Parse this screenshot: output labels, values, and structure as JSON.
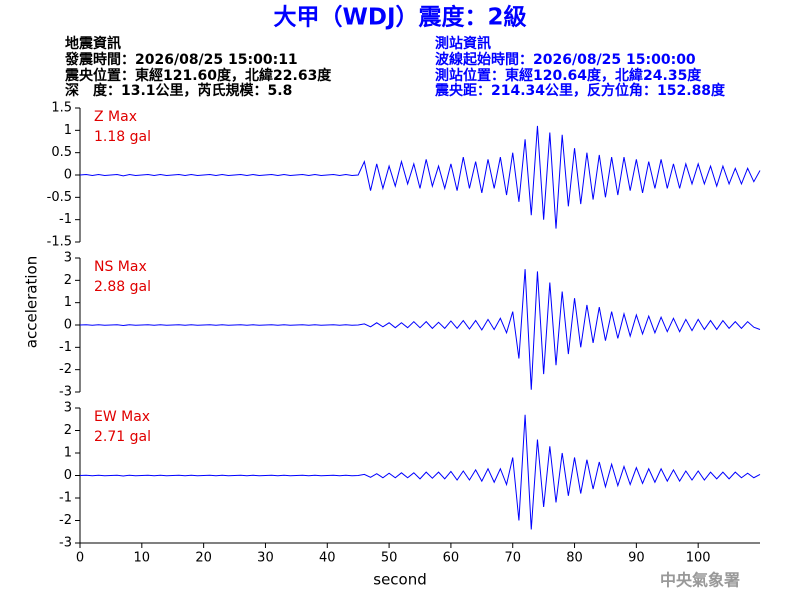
{
  "header": {
    "title": "大甲（WDJ）震度：2級",
    "quake": [
      "地震資訊",
      "發震時間：2026/08/25 15:00:11",
      "震央位置：東經121.60度，北緯22.63度",
      "深　度：13.1公里，芮氏規模：5.8"
    ],
    "station": [
      "測站資訊",
      "波線起始時間：2026/08/25 15:00:00",
      "測站位置：東經120.64度，北緯24.35度",
      "震央距：214.34公里，反方位角：152.88度"
    ]
  },
  "ylabel": "acceleration",
  "footer": "中央氣象署",
  "chart_data": [
    {
      "type": "line",
      "title": "Z Max",
      "annotation": "1.18 gal",
      "color": "#0000ff",
      "xlim": [
        0,
        110
      ],
      "ylim": [
        -1.5,
        1.5
      ],
      "yticks": [
        -1.5,
        -1,
        -0.5,
        0,
        0.5,
        1,
        1.5
      ],
      "x": [
        0,
        1,
        2,
        3,
        4,
        5,
        6,
        7,
        8,
        9,
        10,
        11,
        12,
        13,
        14,
        15,
        16,
        17,
        18,
        19,
        20,
        21,
        22,
        23,
        24,
        25,
        26,
        27,
        28,
        29,
        30,
        31,
        32,
        33,
        34,
        35,
        36,
        37,
        38,
        39,
        40,
        41,
        42,
        43,
        44,
        45,
        46,
        47,
        48,
        49,
        50,
        51,
        52,
        53,
        54,
        55,
        56,
        57,
        58,
        59,
        60,
        61,
        62,
        63,
        64,
        65,
        66,
        67,
        68,
        69,
        70,
        71,
        72,
        73,
        74,
        75,
        76,
        77,
        78,
        79,
        80,
        81,
        82,
        83,
        84,
        85,
        86,
        87,
        88,
        89,
        90,
        91,
        92,
        93,
        94,
        95,
        96,
        97,
        98,
        99,
        100,
        101,
        102,
        103,
        104,
        105,
        106,
        107,
        108,
        109,
        110
      ],
      "values": [
        0,
        0.01,
        -0.01,
        0.01,
        -0.01,
        0,
        0.01,
        -0.02,
        0.01,
        -0.01,
        0,
        0.01,
        -0.01,
        0.01,
        -0.01,
        0,
        0.01,
        -0.01,
        0.01,
        -0.01,
        0,
        0.01,
        -0.01,
        0.01,
        -0.01,
        0,
        0.01,
        -0.01,
        0.01,
        -0.01,
        0,
        0.01,
        -0.01,
        0.01,
        -0.01,
        0,
        0.01,
        -0.01,
        0.01,
        -0.01,
        0,
        0.01,
        -0.01,
        0.01,
        -0.01,
        0,
        0.3,
        -0.35,
        0.25,
        -0.3,
        0.2,
        -0.25,
        0.3,
        -0.2,
        0.25,
        -0.3,
        0.35,
        -0.25,
        0.2,
        -0.3,
        0.25,
        -0.35,
        0.4,
        -0.3,
        0.3,
        -0.4,
        0.35,
        -0.3,
        0.4,
        -0.45,
        0.5,
        -0.6,
        0.8,
        -0.9,
        1.1,
        -1.0,
        0.95,
        -1.2,
        0.9,
        -0.7,
        0.6,
        -0.65,
        0.5,
        -0.55,
        0.45,
        -0.5,
        0.4,
        -0.45,
        0.4,
        -0.35,
        0.35,
        -0.4,
        0.3,
        -0.3,
        0.35,
        -0.3,
        0.25,
        -0.3,
        0.25,
        -0.2,
        0.25,
        -0.2,
        0.2,
        -0.25,
        0.2,
        -0.2,
        0.15,
        -0.2,
        0.15,
        -0.15,
        0.1
      ]
    },
    {
      "type": "line",
      "title": "NS Max",
      "annotation": "2.88 gal",
      "color": "#0000ff",
      "xlim": [
        0,
        110
      ],
      "ylim": [
        -3,
        3
      ],
      "yticks": [
        -3,
        -2,
        -1,
        0,
        1,
        2,
        3
      ],
      "x": [
        0,
        1,
        2,
        3,
        4,
        5,
        6,
        7,
        8,
        9,
        10,
        11,
        12,
        13,
        14,
        15,
        16,
        17,
        18,
        19,
        20,
        21,
        22,
        23,
        24,
        25,
        26,
        27,
        28,
        29,
        30,
        31,
        32,
        33,
        34,
        35,
        36,
        37,
        38,
        39,
        40,
        41,
        42,
        43,
        44,
        45,
        46,
        47,
        48,
        49,
        50,
        51,
        52,
        53,
        54,
        55,
        56,
        57,
        58,
        59,
        60,
        61,
        62,
        63,
        64,
        65,
        66,
        67,
        68,
        69,
        70,
        71,
        72,
        73,
        74,
        75,
        76,
        77,
        78,
        79,
        80,
        81,
        82,
        83,
        84,
        85,
        86,
        87,
        88,
        89,
        90,
        91,
        92,
        93,
        94,
        95,
        96,
        97,
        98,
        99,
        100,
        101,
        102,
        103,
        104,
        105,
        106,
        107,
        108,
        109,
        110
      ],
      "values": [
        0,
        0.01,
        -0.01,
        0.01,
        -0.01,
        0,
        0.01,
        -0.02,
        0.01,
        -0.01,
        0,
        0.01,
        -0.01,
        0.01,
        -0.01,
        0,
        0.01,
        -0.01,
        0.01,
        -0.01,
        0,
        0.01,
        -0.01,
        0.01,
        -0.01,
        0,
        0.01,
        -0.01,
        0.01,
        -0.01,
        0,
        0.01,
        -0.01,
        0.01,
        -0.01,
        0,
        0.01,
        -0.01,
        0.01,
        -0.01,
        0,
        0.01,
        -0.01,
        0.01,
        -0.01,
        0,
        0.05,
        -0.08,
        0.1,
        -0.08,
        0.1,
        -0.12,
        0.1,
        -0.12,
        0.15,
        -0.12,
        0.15,
        -0.15,
        0.12,
        -0.15,
        0.18,
        -0.15,
        0.2,
        -0.18,
        0.2,
        -0.22,
        0.25,
        -0.2,
        0.3,
        -0.35,
        0.6,
        -1.5,
        2.5,
        -2.9,
        2.4,
        -2.2,
        1.9,
        -1.8,
        1.5,
        -1.3,
        1.2,
        -1.0,
        0.9,
        -0.8,
        0.8,
        -0.7,
        0.6,
        -0.6,
        0.5,
        -0.5,
        0.45,
        -0.4,
        0.4,
        -0.35,
        0.35,
        -0.3,
        0.3,
        -0.3,
        0.25,
        -0.25,
        0.25,
        -0.2,
        0.2,
        -0.2,
        0.2,
        -0.15,
        0.15,
        -0.15,
        0.15,
        -0.1,
        -0.2
      ]
    },
    {
      "type": "line",
      "title": "EW Max",
      "annotation": "2.71 gal",
      "color": "#0000ff",
      "xlim": [
        0,
        110
      ],
      "ylim": [
        -3,
        3
      ],
      "yticks": [
        -3,
        -2,
        -1,
        0,
        1,
        2,
        3
      ],
      "xticks": [
        0,
        10,
        20,
        30,
        40,
        50,
        60,
        70,
        80,
        90,
        100
      ],
      "xlabel": "second",
      "x": [
        0,
        1,
        2,
        3,
        4,
        5,
        6,
        7,
        8,
        9,
        10,
        11,
        12,
        13,
        14,
        15,
        16,
        17,
        18,
        19,
        20,
        21,
        22,
        23,
        24,
        25,
        26,
        27,
        28,
        29,
        30,
        31,
        32,
        33,
        34,
        35,
        36,
        37,
        38,
        39,
        40,
        41,
        42,
        43,
        44,
        45,
        46,
        47,
        48,
        49,
        50,
        51,
        52,
        53,
        54,
        55,
        56,
        57,
        58,
        59,
        60,
        61,
        62,
        63,
        64,
        65,
        66,
        67,
        68,
        69,
        70,
        71,
        72,
        73,
        74,
        75,
        76,
        77,
        78,
        79,
        80,
        81,
        82,
        83,
        84,
        85,
        86,
        87,
        88,
        89,
        90,
        91,
        92,
        93,
        94,
        95,
        96,
        97,
        98,
        99,
        100,
        101,
        102,
        103,
        104,
        105,
        106,
        107,
        108,
        109,
        110
      ],
      "values": [
        0,
        0.01,
        -0.01,
        0.01,
        -0.01,
        0,
        0.01,
        -0.02,
        0.01,
        -0.01,
        0,
        0.01,
        -0.01,
        0.01,
        -0.01,
        0,
        0.01,
        -0.01,
        0.01,
        -0.01,
        0,
        0.01,
        -0.01,
        0.01,
        -0.01,
        0,
        0.01,
        -0.01,
        0.01,
        -0.01,
        0,
        0.01,
        -0.01,
        0.01,
        -0.01,
        0,
        0.01,
        -0.01,
        0.01,
        -0.01,
        0,
        0.01,
        -0.01,
        0.01,
        -0.01,
        0,
        0.05,
        -0.08,
        0.08,
        -0.1,
        0.1,
        -0.1,
        0.12,
        -0.1,
        0.12,
        -0.15,
        0.15,
        -0.12,
        0.15,
        -0.15,
        0.18,
        -0.2,
        0.2,
        -0.2,
        0.25,
        -0.25,
        0.3,
        -0.3,
        0.3,
        -0.4,
        0.8,
        -2.0,
        2.7,
        -2.4,
        1.6,
        -1.4,
        1.3,
        -1.2,
        1.0,
        -0.9,
        0.8,
        -0.8,
        0.7,
        -0.6,
        0.6,
        -0.5,
        0.5,
        -0.45,
        0.4,
        -0.4,
        0.35,
        -0.35,
        0.3,
        -0.3,
        0.3,
        -0.25,
        0.25,
        -0.25,
        0.2,
        -0.2,
        0.2,
        -0.2,
        0.15,
        -0.15,
        0.15,
        -0.15,
        0.15,
        -0.1,
        0.1,
        -0.1,
        0.05
      ]
    }
  ]
}
